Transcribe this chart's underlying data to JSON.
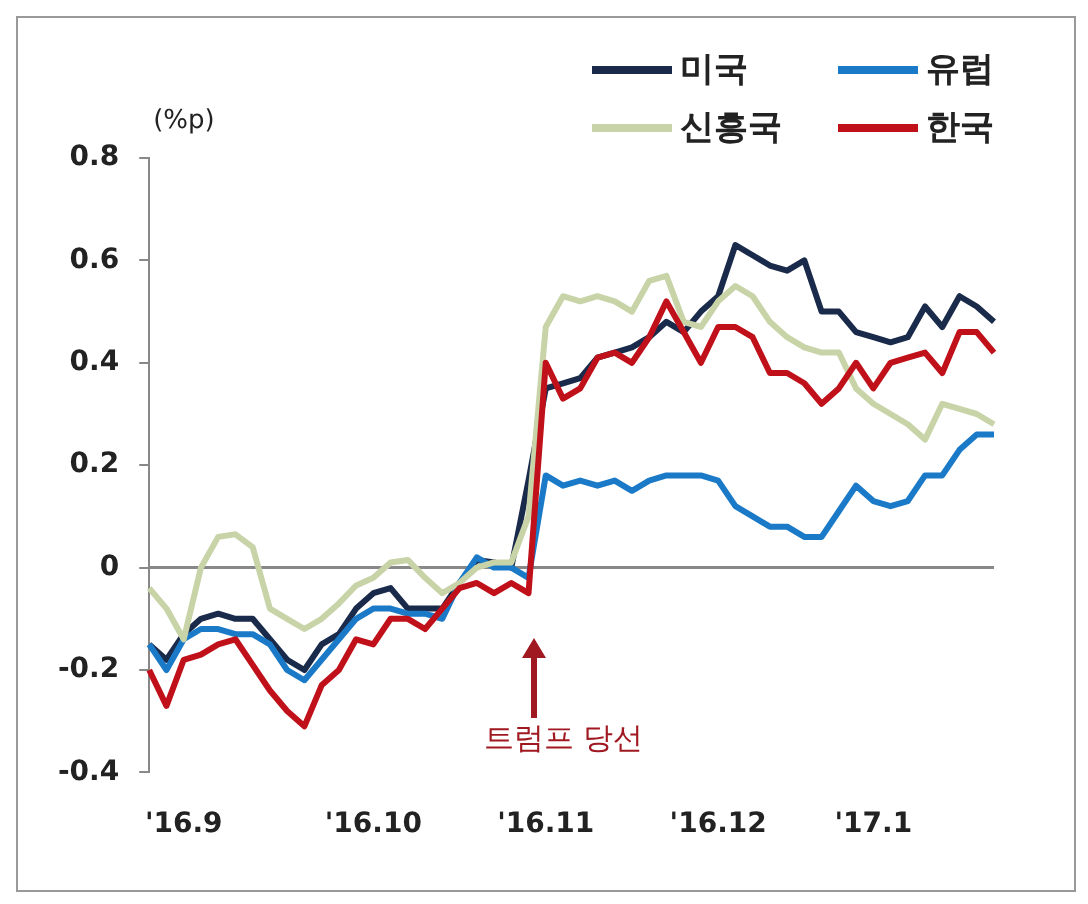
{
  "chart_data": {
    "type": "line",
    "ylabel": "(%p)",
    "categories": [
      null,
      null,
      "'16.9",
      null,
      null,
      null,
      null,
      null,
      null,
      null,
      null,
      null,
      null,
      "'16.10",
      null,
      null,
      null,
      null,
      null,
      null,
      null,
      null,
      null,
      "'16.11",
      null,
      null,
      null,
      null,
      null,
      null,
      null,
      null,
      null,
      "'16.12",
      null,
      null,
      null,
      null,
      null,
      null,
      null,
      null,
      "'17.1",
      null,
      null,
      null,
      null,
      null,
      null,
      null
    ],
    "series": [
      {
        "name": "미국",
        "color": "#1a2a4a",
        "values": [
          -0.15,
          -0.18,
          -0.13,
          -0.1,
          -0.09,
          -0.1,
          -0.1,
          -0.14,
          -0.18,
          -0.2,
          -0.15,
          -0.13,
          -0.08,
          -0.05,
          -0.04,
          -0.08,
          -0.08,
          -0.08,
          -0.03,
          0.015,
          0.01,
          0,
          0.17,
          0.35,
          0.36,
          0.37,
          0.41,
          0.42,
          0.43,
          0.45,
          0.48,
          0.46,
          0.5,
          0.53,
          0.63,
          0.61,
          0.59,
          0.58,
          0.6,
          0.5,
          0.5,
          0.46,
          0.45,
          0.44,
          0.45,
          0.51,
          0.47,
          0.53,
          0.51,
          0.48
        ]
      },
      {
        "name": "유럽",
        "color": "#1a7ac8",
        "values": [
          -0.15,
          -0.2,
          -0.14,
          -0.12,
          -0.12,
          -0.13,
          -0.13,
          -0.15,
          -0.2,
          -0.22,
          -0.18,
          -0.14,
          -0.1,
          -0.08,
          -0.08,
          -0.09,
          -0.09,
          -0.1,
          -0.03,
          0.02,
          0,
          0,
          -0.02,
          0.18,
          0.16,
          0.17,
          0.16,
          0.17,
          0.15,
          0.17,
          0.18,
          0.18,
          0.18,
          0.17,
          0.12,
          0.1,
          0.08,
          0.08,
          0.06,
          0.06,
          0.11,
          0.16,
          0.13,
          0.12,
          0.13,
          0.18,
          0.18,
          0.23,
          0.26,
          0.26
        ]
      },
      {
        "name": "신흥국",
        "color": "#c8d4a8",
        "values": [
          -0.04,
          -0.08,
          -0.14,
          0,
          0.06,
          0.065,
          0.04,
          -0.08,
          -0.1,
          -0.12,
          -0.1,
          -0.07,
          -0.035,
          -0.02,
          0.01,
          0.015,
          -0.02,
          -0.05,
          -0.03,
          0,
          0.01,
          0.01,
          0.1,
          0.47,
          0.53,
          0.52,
          0.53,
          0.52,
          0.5,
          0.56,
          0.57,
          0.48,
          0.47,
          0.52,
          0.55,
          0.53,
          0.48,
          0.45,
          0.43,
          0.42,
          0.42,
          0.35,
          0.32,
          0.3,
          0.28,
          0.25,
          0.32,
          0.31,
          0.3,
          0.28
        ]
      },
      {
        "name": "한국",
        "color": "#c0101a",
        "values": [
          -0.2,
          -0.27,
          -0.18,
          -0.17,
          -0.15,
          -0.14,
          -0.19,
          -0.24,
          -0.28,
          -0.31,
          -0.23,
          -0.2,
          -0.14,
          -0.15,
          -0.1,
          -0.1,
          -0.12,
          -0.08,
          -0.04,
          -0.03,
          -0.05,
          -0.03,
          -0.05,
          0.4,
          0.33,
          0.35,
          0.41,
          0.42,
          0.4,
          0.45,
          0.52,
          0.46,
          0.4,
          0.47,
          0.47,
          0.45,
          0.38,
          0.38,
          0.36,
          0.32,
          0.35,
          0.4,
          0.35,
          0.4,
          0.41,
          0.42,
          0.38,
          0.46,
          0.46,
          0.42
        ]
      }
    ],
    "ylim": [
      -0.4,
      0.8
    ],
    "yticks": [
      -0.4,
      -0.2,
      0,
      0.2,
      0.4,
      0.6,
      0.8
    ],
    "ref_lines": [
      {
        "axis": "y",
        "value": 0,
        "color": "#888888"
      }
    ],
    "annotations": [
      "트럼프 당선"
    ],
    "grid": false,
    "legend": "top right",
    "marker": "none",
    "line_style": "solid"
  }
}
